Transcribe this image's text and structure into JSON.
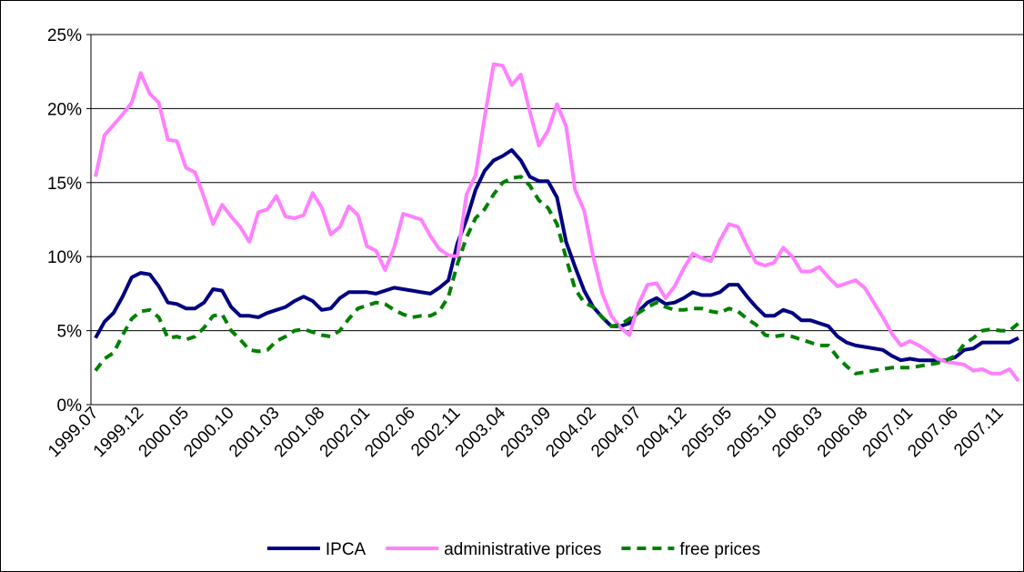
{
  "chart_data": {
    "type": "line",
    "categories": [
      "1999.07",
      null,
      null,
      null,
      null,
      "1999.12",
      null,
      null,
      null,
      null,
      "2000.05",
      null,
      null,
      null,
      null,
      "2000.10",
      null,
      null,
      null,
      null,
      "2001.03",
      null,
      null,
      null,
      null,
      "2001.08",
      null,
      null,
      null,
      null,
      "2002.01",
      null,
      null,
      null,
      null,
      "2002.06",
      null,
      null,
      null,
      null,
      "2002.11",
      null,
      null,
      null,
      null,
      "2003.04",
      null,
      null,
      null,
      null,
      "2003.09",
      null,
      null,
      null,
      null,
      "2004.02",
      null,
      null,
      null,
      null,
      "2004.07",
      null,
      null,
      null,
      null,
      "2004.12",
      null,
      null,
      null,
      null,
      "2005.05",
      null,
      null,
      null,
      null,
      "2005.10",
      null,
      null,
      null,
      null,
      "2006.03",
      null,
      null,
      null,
      null,
      "2006.08",
      null,
      null,
      null,
      null,
      "2007.01",
      null,
      null,
      null,
      null,
      "2007.06",
      null,
      null,
      null,
      null,
      "2007.11",
      null,
      null
    ],
    "series": [
      {
        "name": "IPCA",
        "color": "#000080",
        "style": "solid",
        "values": [
          4.5,
          5.6,
          6.2,
          7.3,
          8.6,
          8.9,
          8.8,
          8.0,
          6.9,
          6.8,
          6.5,
          6.5,
          6.9,
          7.8,
          7.7,
          6.6,
          6.0,
          6.0,
          5.9,
          6.2,
          6.4,
          6.6,
          7.0,
          7.3,
          7.0,
          6.4,
          6.5,
          7.2,
          7.6,
          7.6,
          7.6,
          7.5,
          7.7,
          7.9,
          7.8,
          7.7,
          7.6,
          7.5,
          7.9,
          8.4,
          10.9,
          12.5,
          14.5,
          15.8,
          16.5,
          16.8,
          17.2,
          16.5,
          15.4,
          15.1,
          15.1,
          14.0,
          11.0,
          9.3,
          7.7,
          6.6,
          5.9,
          5.3,
          5.3,
          5.5,
          6.3,
          6.9,
          7.2,
          6.8,
          6.9,
          7.2,
          7.6,
          7.4,
          7.4,
          7.6,
          8.1,
          8.1,
          7.3,
          6.6,
          6.0,
          6.0,
          6.4,
          6.2,
          5.7,
          5.7,
          5.5,
          5.3,
          4.6,
          4.2,
          4.0,
          3.9,
          3.8,
          3.7,
          3.3,
          3.0,
          3.1,
          3.0,
          3.0,
          3.0,
          3.0,
          3.2,
          3.7,
          3.8,
          4.2,
          4.2,
          4.2,
          4.2,
          4.5
        ]
      },
      {
        "name": "administrative prices",
        "color": "#ff80ff",
        "style": "solid",
        "values": [
          15.4,
          18.2,
          18.9,
          19.6,
          20.4,
          22.4,
          21.0,
          20.4,
          17.9,
          17.8,
          16.0,
          15.7,
          14.0,
          12.2,
          13.5,
          12.7,
          12.0,
          11.0,
          13.0,
          13.2,
          14.1,
          12.7,
          12.6,
          12.8,
          14.3,
          13.3,
          11.5,
          12.0,
          13.4,
          12.8,
          10.7,
          10.4,
          9.1,
          10.6,
          12.9,
          12.7,
          12.5,
          11.4,
          10.5,
          10.1,
          10.0,
          14.2,
          15.5,
          19.4,
          23.0,
          22.9,
          21.6,
          22.3,
          19.8,
          17.5,
          18.5,
          20.3,
          18.8,
          14.5,
          13.1,
          10.0,
          7.5,
          6.0,
          5.2,
          4.7,
          6.8,
          8.1,
          8.2,
          7.2,
          8.0,
          9.2,
          10.2,
          9.9,
          9.7,
          11.1,
          12.2,
          12.0,
          10.7,
          9.6,
          9.4,
          9.6,
          10.6,
          10.0,
          9.0,
          9.0,
          9.3,
          8.6,
          8.0,
          8.2,
          8.4,
          7.9,
          6.9,
          5.9,
          4.8,
          4.0,
          4.3,
          4.0,
          3.6,
          3.1,
          2.9,
          2.8,
          2.7,
          2.3,
          2.4,
          2.1,
          2.1,
          2.4,
          1.6
        ]
      },
      {
        "name": "free prices",
        "color": "#008000",
        "style": "dashed",
        "values": [
          2.3,
          3.1,
          3.5,
          4.7,
          5.8,
          6.3,
          6.4,
          5.9,
          4.5,
          4.6,
          4.4,
          4.6,
          5.2,
          6.0,
          6.1,
          5.0,
          4.4,
          3.7,
          3.6,
          3.7,
          4.3,
          4.6,
          5.0,
          5.1,
          4.9,
          4.7,
          4.6,
          5.0,
          5.8,
          6.5,
          6.7,
          6.9,
          6.8,
          6.4,
          6.1,
          5.9,
          6.0,
          6.0,
          6.3,
          7.3,
          9.5,
          11.3,
          12.6,
          13.2,
          14.2,
          15.0,
          15.3,
          15.4,
          14.8,
          13.8,
          13.3,
          12.2,
          9.9,
          7.8,
          6.9,
          6.6,
          5.9,
          5.3,
          5.4,
          5.8,
          6.2,
          6.6,
          6.9,
          6.6,
          6.4,
          6.4,
          6.5,
          6.5,
          6.3,
          6.2,
          6.5,
          6.3,
          5.8,
          5.4,
          4.7,
          4.6,
          4.7,
          4.6,
          4.4,
          4.2,
          4.0,
          4.0,
          3.2,
          2.6,
          2.1,
          2.2,
          2.3,
          2.4,
          2.5,
          2.5,
          2.5,
          2.6,
          2.7,
          2.8,
          3.0,
          3.3,
          4.1,
          4.5,
          5.0,
          5.1,
          5.0,
          5.0,
          5.5
        ]
      }
    ],
    "ylim": [
      0,
      25
    ],
    "yticks": [
      {
        "value": 0,
        "label": "0%"
      },
      {
        "value": 5,
        "label": "5%"
      },
      {
        "value": 10,
        "label": "10%"
      },
      {
        "value": 15,
        "label": "15%"
      },
      {
        "value": 20,
        "label": "20%"
      },
      {
        "value": 25,
        "label": "25%"
      }
    ],
    "grid": true,
    "legend": "bottom"
  }
}
